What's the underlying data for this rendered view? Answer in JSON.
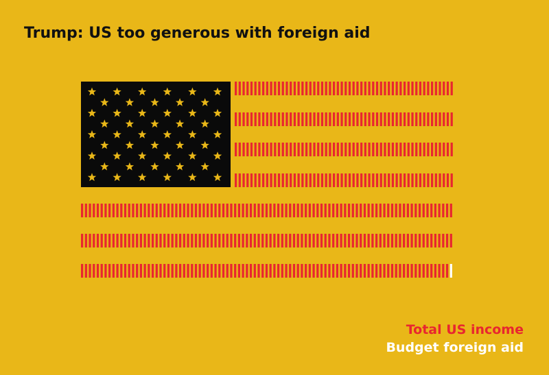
{
  "title": "Trump: US too generous with foreign aid",
  "legend": [
    {
      "label": "Total US income",
      "color": "#e8262f"
    },
    {
      "label": "Budget foreign aid",
      "color": "#ffffff"
    }
  ]
}
